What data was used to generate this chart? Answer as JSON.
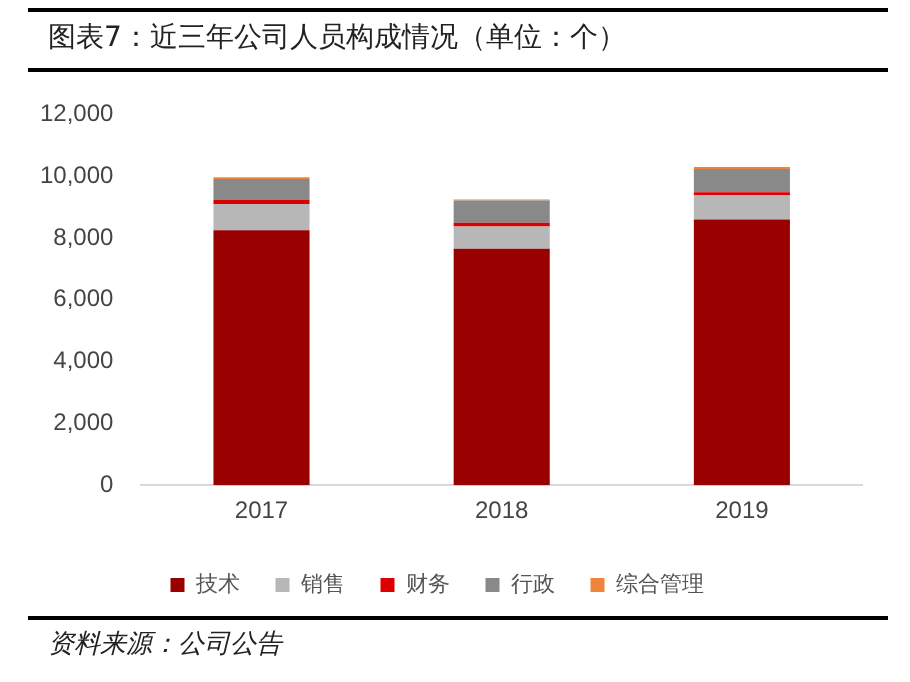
{
  "chart_data": {
    "type": "bar",
    "title": "图表7：近三年公司人员构成情况（单位：个）",
    "annotations": [
      "资料来源：公司公告"
    ],
    "categories": [
      "2017",
      "2018",
      "2019"
    ],
    "stacked": true,
    "series": [
      {
        "name": "技术",
        "color": "#990000",
        "values": [
          8250,
          7650,
          8600
        ]
      },
      {
        "name": "销售",
        "color": "#b7b7b7",
        "values": [
          850,
          720,
          790
        ]
      },
      {
        "name": "财务",
        "color": "#dd0000",
        "values": [
          130,
          120,
          90
        ]
      },
      {
        "name": "行政",
        "color": "#898989",
        "values": [
          680,
          720,
          750
        ]
      },
      {
        "name": "综合管理",
        "color": "#f0843c",
        "values": [
          60,
          40,
          70
        ]
      }
    ],
    "ylim": [
      0,
      12000
    ],
    "yticks": [
      0,
      {
        "value": 2000,
        "label": "2,000"
      },
      {
        "value": 4000,
        "label": "4,000"
      },
      {
        "value": 6000,
        "label": "6,000"
      },
      {
        "value": 8000,
        "label": "8,000"
      },
      {
        "value": 10000,
        "label": "10,000"
      },
      {
        "value": 12000,
        "label": "12,000"
      }
    ],
    "grid": false,
    "legend": "bottom"
  }
}
